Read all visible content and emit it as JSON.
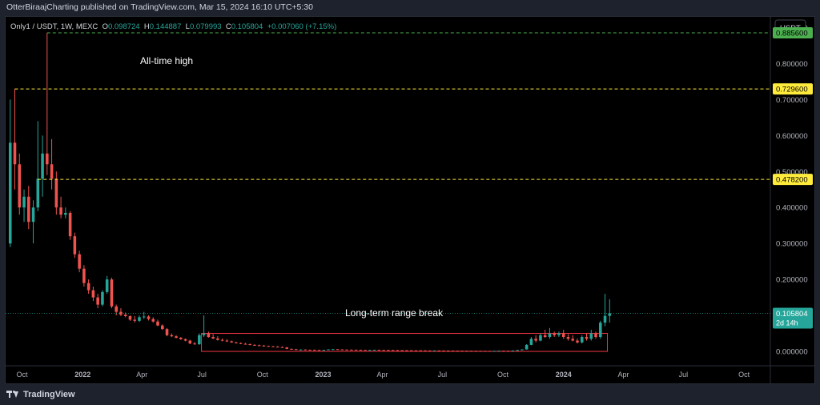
{
  "header": {
    "publish_text": "OtterBiraajCharting published on TradingView.com, Mar 15, 2024 16:10 UTC+5:30"
  },
  "legend": {
    "symbol": "Only1 / USDT, 1W, MEXC",
    "o_label": "O",
    "o_value": "0.098724",
    "h_label": "H",
    "h_value": "0.144887",
    "l_label": "L",
    "l_value": "0.079993",
    "c_label": "C",
    "c_value": "0.105804",
    "change": "+0.007060 (+7.15%)"
  },
  "price_scale": {
    "currency": "USDT",
    "ticks": [
      "0.900000",
      "0.800000",
      "0.700000",
      "0.600000",
      "0.500000",
      "0.400000",
      "0.300000",
      "0.200000",
      "0.100000",
      "0.000000"
    ]
  },
  "time_axis": {
    "labels": [
      "Oct",
      "2022",
      "Apr",
      "Jul",
      "Oct",
      "2023",
      "Apr",
      "Jul",
      "Oct",
      "2024",
      "Apr",
      "Jul",
      "Oct"
    ]
  },
  "levels": [
    {
      "value": 0.8856,
      "label": "0.885600",
      "line_color": "#4caf50",
      "tag_color": "#4caf50"
    },
    {
      "value": 0.7296,
      "label": "0.729600",
      "line_color": "#ffeb3b",
      "tag_color": "#ffeb3b"
    },
    {
      "value": 0.4782,
      "label": "0.478200",
      "line_color": "#ffeb3b",
      "tag_color": "#ffeb3b"
    }
  ],
  "current_price": {
    "value": 0.105804,
    "label": "0.105804",
    "countdown": "2d 14h",
    "color": "#26a69a"
  },
  "annotations": {
    "ath_text": "All-time high",
    "range_text": "Long-term range break",
    "range_box_color": "#f23645"
  },
  "colors": {
    "up": "#26a69a",
    "down": "#ef5350",
    "background": "#000000"
  },
  "footer": {
    "brand": "TradingView"
  },
  "chart_data": {
    "type": "candlestick",
    "title": "Only1 / USDT, 1W, MEXC",
    "ylim": [
      -0.04,
      0.93
    ],
    "x_range": [
      "2021-09-06",
      "2024-11-10"
    ],
    "candles": [
      {
        "t": "2021-09-13",
        "o": 0.3,
        "h": 0.7,
        "l": 0.29,
        "c": 0.58
      },
      {
        "t": "2021-09-20",
        "o": 0.58,
        "h": 0.73,
        "l": 0.45,
        "c": 0.52
      },
      {
        "t": "2021-09-27",
        "o": 0.52,
        "h": 0.55,
        "l": 0.38,
        "c": 0.4
      },
      {
        "t": "2021-10-04",
        "o": 0.4,
        "h": 0.45,
        "l": 0.36,
        "c": 0.43
      },
      {
        "t": "2021-10-11",
        "o": 0.43,
        "h": 0.46,
        "l": 0.34,
        "c": 0.36
      },
      {
        "t": "2021-10-18",
        "o": 0.36,
        "h": 0.42,
        "l": 0.3,
        "c": 0.4
      },
      {
        "t": "2021-10-25",
        "o": 0.4,
        "h": 0.64,
        "l": 0.39,
        "c": 0.48
      },
      {
        "t": "2021-11-01",
        "o": 0.48,
        "h": 0.6,
        "l": 0.43,
        "c": 0.55
      },
      {
        "t": "2021-11-08",
        "o": 0.55,
        "h": 0.8856,
        "l": 0.49,
        "c": 0.52
      },
      {
        "t": "2021-11-15",
        "o": 0.52,
        "h": 0.59,
        "l": 0.45,
        "c": 0.48
      },
      {
        "t": "2021-11-22",
        "o": 0.48,
        "h": 0.5,
        "l": 0.38,
        "c": 0.4
      },
      {
        "t": "2021-11-29",
        "o": 0.4,
        "h": 0.43,
        "l": 0.37,
        "c": 0.38
      },
      {
        "t": "2021-12-06",
        "o": 0.38,
        "h": 0.4,
        "l": 0.37,
        "c": 0.385
      },
      {
        "t": "2021-12-13",
        "o": 0.385,
        "h": 0.39,
        "l": 0.31,
        "c": 0.32
      },
      {
        "t": "2021-12-20",
        "o": 0.32,
        "h": 0.33,
        "l": 0.26,
        "c": 0.27
      },
      {
        "t": "2021-12-27",
        "o": 0.27,
        "h": 0.28,
        "l": 0.22,
        "c": 0.23
      },
      {
        "t": "2022-01-03",
        "o": 0.23,
        "h": 0.24,
        "l": 0.18,
        "c": 0.19
      },
      {
        "t": "2022-01-10",
        "o": 0.19,
        "h": 0.2,
        "l": 0.16,
        "c": 0.17
      },
      {
        "t": "2022-01-17",
        "o": 0.17,
        "h": 0.18,
        "l": 0.14,
        "c": 0.15
      },
      {
        "t": "2022-01-24",
        "o": 0.15,
        "h": 0.16,
        "l": 0.12,
        "c": 0.13
      },
      {
        "t": "2022-01-31",
        "o": 0.13,
        "h": 0.17,
        "l": 0.125,
        "c": 0.165
      },
      {
        "t": "2022-02-07",
        "o": 0.165,
        "h": 0.21,
        "l": 0.16,
        "c": 0.2
      },
      {
        "t": "2022-02-14",
        "o": 0.2,
        "h": 0.205,
        "l": 0.12,
        "c": 0.125
      },
      {
        "t": "2022-02-21",
        "o": 0.125,
        "h": 0.13,
        "l": 0.1,
        "c": 0.11
      },
      {
        "t": "2022-02-28",
        "o": 0.11,
        "h": 0.12,
        "l": 0.098,
        "c": 0.102
      },
      {
        "t": "2022-03-07",
        "o": 0.102,
        "h": 0.108,
        "l": 0.095,
        "c": 0.098
      },
      {
        "t": "2022-03-14",
        "o": 0.098,
        "h": 0.1,
        "l": 0.085,
        "c": 0.088
      },
      {
        "t": "2022-03-21",
        "o": 0.088,
        "h": 0.098,
        "l": 0.08,
        "c": 0.085
      },
      {
        "t": "2022-03-28",
        "o": 0.085,
        "h": 0.1,
        "l": 0.082,
        "c": 0.095
      },
      {
        "t": "2022-04-04",
        "o": 0.095,
        "h": 0.11,
        "l": 0.09,
        "c": 0.097
      },
      {
        "t": "2022-04-11",
        "o": 0.097,
        "h": 0.1,
        "l": 0.086,
        "c": 0.09
      },
      {
        "t": "2022-04-18",
        "o": 0.09,
        "h": 0.095,
        "l": 0.08,
        "c": 0.083
      },
      {
        "t": "2022-04-25",
        "o": 0.083,
        "h": 0.088,
        "l": 0.07,
        "c": 0.072
      },
      {
        "t": "2022-05-02",
        "o": 0.072,
        "h": 0.075,
        "l": 0.06,
        "c": 0.062
      },
      {
        "t": "2022-05-09",
        "o": 0.062,
        "h": 0.065,
        "l": 0.042,
        "c": 0.045
      },
      {
        "t": "2022-05-16",
        "o": 0.045,
        "h": 0.05,
        "l": 0.04,
        "c": 0.042
      },
      {
        "t": "2022-05-23",
        "o": 0.042,
        "h": 0.045,
        "l": 0.036,
        "c": 0.038
      },
      {
        "t": "2022-05-30",
        "o": 0.038,
        "h": 0.04,
        "l": 0.032,
        "c": 0.034
      },
      {
        "t": "2022-06-06",
        "o": 0.034,
        "h": 0.036,
        "l": 0.028,
        "c": 0.03
      },
      {
        "t": "2022-06-13",
        "o": 0.03,
        "h": 0.032,
        "l": 0.02,
        "c": 0.022
      },
      {
        "t": "2022-06-20",
        "o": 0.022,
        "h": 0.026,
        "l": 0.018,
        "c": 0.02
      },
      {
        "t": "2022-06-27",
        "o": 0.02,
        "h": 0.05,
        "l": 0.018,
        "c": 0.045
      },
      {
        "t": "2022-07-04",
        "o": 0.045,
        "h": 0.1,
        "l": 0.04,
        "c": 0.05
      },
      {
        "t": "2022-07-11",
        "o": 0.05,
        "h": 0.055,
        "l": 0.038,
        "c": 0.04
      },
      {
        "t": "2022-07-18",
        "o": 0.04,
        "h": 0.048,
        "l": 0.034,
        "c": 0.036
      },
      {
        "t": "2022-07-25",
        "o": 0.036,
        "h": 0.042,
        "l": 0.03,
        "c": 0.032
      },
      {
        "t": "2022-08-01",
        "o": 0.032,
        "h": 0.036,
        "l": 0.028,
        "c": 0.03
      },
      {
        "t": "2022-08-08",
        "o": 0.03,
        "h": 0.034,
        "l": 0.026,
        "c": 0.028
      },
      {
        "t": "2022-08-15",
        "o": 0.028,
        "h": 0.03,
        "l": 0.024,
        "c": 0.025
      },
      {
        "t": "2022-08-22",
        "o": 0.025,
        "h": 0.027,
        "l": 0.022,
        "c": 0.023
      },
      {
        "t": "2022-08-29",
        "o": 0.023,
        "h": 0.025,
        "l": 0.02,
        "c": 0.021
      },
      {
        "t": "2022-09-05",
        "o": 0.021,
        "h": 0.024,
        "l": 0.019,
        "c": 0.02
      },
      {
        "t": "2022-09-12",
        "o": 0.02,
        "h": 0.022,
        "l": 0.017,
        "c": 0.018
      },
      {
        "t": "2022-09-19",
        "o": 0.018,
        "h": 0.02,
        "l": 0.016,
        "c": 0.017
      },
      {
        "t": "2022-09-26",
        "o": 0.017,
        "h": 0.019,
        "l": 0.015,
        "c": 0.016
      },
      {
        "t": "2022-10-03",
        "o": 0.016,
        "h": 0.018,
        "l": 0.014,
        "c": 0.015
      },
      {
        "t": "2022-10-10",
        "o": 0.015,
        "h": 0.016,
        "l": 0.013,
        "c": 0.014
      },
      {
        "t": "2022-10-17",
        "o": 0.014,
        "h": 0.015,
        "l": 0.012,
        "c": 0.013
      },
      {
        "t": "2022-10-24",
        "o": 0.013,
        "h": 0.015,
        "l": 0.011,
        "c": 0.012
      },
      {
        "t": "2022-10-31",
        "o": 0.012,
        "h": 0.014,
        "l": 0.01,
        "c": 0.011
      },
      {
        "t": "2022-11-07",
        "o": 0.011,
        "h": 0.012,
        "l": 0.006,
        "c": 0.007
      },
      {
        "t": "2022-11-14",
        "o": 0.007,
        "h": 0.008,
        "l": 0.005,
        "c": 0.006
      },
      {
        "t": "2022-11-21",
        "o": 0.006,
        "h": 0.007,
        "l": 0.004,
        "c": 0.005
      },
      {
        "t": "2022-11-28",
        "o": 0.005,
        "h": 0.006,
        "l": 0.004,
        "c": 0.005
      },
      {
        "t": "2022-12-05",
        "o": 0.005,
        "h": 0.006,
        "l": 0.004,
        "c": 0.0045
      },
      {
        "t": "2022-12-12",
        "o": 0.0045,
        "h": 0.005,
        "l": 0.004,
        "c": 0.0042
      },
      {
        "t": "2022-12-19",
        "o": 0.0042,
        "h": 0.005,
        "l": 0.0038,
        "c": 0.004
      },
      {
        "t": "2022-12-26",
        "o": 0.004,
        "h": 0.0045,
        "l": 0.0035,
        "c": 0.0038
      },
      {
        "t": "2023-01-02",
        "o": 0.0038,
        "h": 0.0045,
        "l": 0.0035,
        "c": 0.004
      },
      {
        "t": "2023-01-09",
        "o": 0.004,
        "h": 0.006,
        "l": 0.0038,
        "c": 0.0055
      },
      {
        "t": "2023-01-16",
        "o": 0.0055,
        "h": 0.007,
        "l": 0.005,
        "c": 0.006
      },
      {
        "t": "2023-01-23",
        "o": 0.006,
        "h": 0.0065,
        "l": 0.005,
        "c": 0.0055
      },
      {
        "t": "2023-01-30",
        "o": 0.0055,
        "h": 0.006,
        "l": 0.0048,
        "c": 0.005
      },
      {
        "t": "2023-02-06",
        "o": 0.005,
        "h": 0.0055,
        "l": 0.0045,
        "c": 0.0048
      },
      {
        "t": "2023-02-13",
        "o": 0.0048,
        "h": 0.0052,
        "l": 0.0044,
        "c": 0.0046
      },
      {
        "t": "2023-02-20",
        "o": 0.0046,
        "h": 0.005,
        "l": 0.0042,
        "c": 0.0044
      },
      {
        "t": "2023-02-27",
        "o": 0.0044,
        "h": 0.0048,
        "l": 0.004,
        "c": 0.0042
      },
      {
        "t": "2023-03-06",
        "o": 0.0042,
        "h": 0.0046,
        "l": 0.0038,
        "c": 0.004
      },
      {
        "t": "2023-03-13",
        "o": 0.004,
        "h": 0.0046,
        "l": 0.0038,
        "c": 0.0043
      },
      {
        "t": "2023-03-20",
        "o": 0.0043,
        "h": 0.0048,
        "l": 0.004,
        "c": 0.0045
      },
      {
        "t": "2023-03-27",
        "o": 0.0045,
        "h": 0.0048,
        "l": 0.004,
        "c": 0.0042
      },
      {
        "t": "2023-04-03",
        "o": 0.0042,
        "h": 0.0045,
        "l": 0.0038,
        "c": 0.004
      },
      {
        "t": "2023-04-10",
        "o": 0.004,
        "h": 0.0044,
        "l": 0.0036,
        "c": 0.0038
      },
      {
        "t": "2023-04-17",
        "o": 0.0038,
        "h": 0.004,
        "l": 0.0034,
        "c": 0.0035
      },
      {
        "t": "2023-04-24",
        "o": 0.0035,
        "h": 0.0038,
        "l": 0.0032,
        "c": 0.0033
      },
      {
        "t": "2023-05-01",
        "o": 0.0033,
        "h": 0.0036,
        "l": 0.003,
        "c": 0.0032
      },
      {
        "t": "2023-05-08",
        "o": 0.0032,
        "h": 0.0035,
        "l": 0.0029,
        "c": 0.003
      },
      {
        "t": "2023-05-15",
        "o": 0.003,
        "h": 0.0033,
        "l": 0.0028,
        "c": 0.0029
      },
      {
        "t": "2023-05-22",
        "o": 0.0029,
        "h": 0.0031,
        "l": 0.0027,
        "c": 0.0028
      },
      {
        "t": "2023-05-29",
        "o": 0.0028,
        "h": 0.003,
        "l": 0.0026,
        "c": 0.0027
      },
      {
        "t": "2023-06-05",
        "o": 0.0027,
        "h": 0.0029,
        "l": 0.0024,
        "c": 0.0025
      },
      {
        "t": "2023-06-12",
        "o": 0.0025,
        "h": 0.0027,
        "l": 0.0022,
        "c": 0.0023
      },
      {
        "t": "2023-06-19",
        "o": 0.0023,
        "h": 0.0026,
        "l": 0.0022,
        "c": 0.0025
      },
      {
        "t": "2023-06-26",
        "o": 0.0025,
        "h": 0.0027,
        "l": 0.0023,
        "c": 0.0024
      },
      {
        "t": "2023-07-03",
        "o": 0.0024,
        "h": 0.0026,
        "l": 0.0022,
        "c": 0.0023
      },
      {
        "t": "2023-07-10",
        "o": 0.0023,
        "h": 0.0026,
        "l": 0.0021,
        "c": 0.0022
      },
      {
        "t": "2023-07-17",
        "o": 0.0022,
        "h": 0.0024,
        "l": 0.002,
        "c": 0.0021
      },
      {
        "t": "2023-07-24",
        "o": 0.0021,
        "h": 0.0023,
        "l": 0.0019,
        "c": 0.002
      },
      {
        "t": "2023-07-31",
        "o": 0.002,
        "h": 0.0022,
        "l": 0.0018,
        "c": 0.0019
      },
      {
        "t": "2023-08-07",
        "o": 0.0019,
        "h": 0.0021,
        "l": 0.0017,
        "c": 0.0018
      },
      {
        "t": "2023-08-14",
        "o": 0.0018,
        "h": 0.002,
        "l": 0.0016,
        "c": 0.0017
      },
      {
        "t": "2023-08-21",
        "o": 0.0017,
        "h": 0.0019,
        "l": 0.0015,
        "c": 0.0016
      },
      {
        "t": "2023-08-28",
        "o": 0.0016,
        "h": 0.0018,
        "l": 0.0014,
        "c": 0.0015
      },
      {
        "t": "2023-09-04",
        "o": 0.0015,
        "h": 0.0017,
        "l": 0.0013,
        "c": 0.0014
      },
      {
        "t": "2023-09-11",
        "o": 0.0014,
        "h": 0.0016,
        "l": 0.0012,
        "c": 0.0013
      },
      {
        "t": "2023-09-18",
        "o": 0.0013,
        "h": 0.0016,
        "l": 0.0012,
        "c": 0.0015
      },
      {
        "t": "2023-09-25",
        "o": 0.0015,
        "h": 0.002,
        "l": 0.0014,
        "c": 0.0019
      },
      {
        "t": "2023-10-02",
        "o": 0.0019,
        "h": 0.0022,
        "l": 0.0017,
        "c": 0.0018
      },
      {
        "t": "2023-10-09",
        "o": 0.0018,
        "h": 0.002,
        "l": 0.0016,
        "c": 0.0017
      },
      {
        "t": "2023-10-16",
        "o": 0.0017,
        "h": 0.0025,
        "l": 0.0016,
        "c": 0.0024
      },
      {
        "t": "2023-10-23",
        "o": 0.0024,
        "h": 0.004,
        "l": 0.0022,
        "c": 0.0038
      },
      {
        "t": "2023-10-30",
        "o": 0.0038,
        "h": 0.006,
        "l": 0.0035,
        "c": 0.0055
      },
      {
        "t": "2023-11-06",
        "o": 0.0055,
        "h": 0.02,
        "l": 0.005,
        "c": 0.018
      },
      {
        "t": "2023-11-13",
        "o": 0.018,
        "h": 0.04,
        "l": 0.017,
        "c": 0.035
      },
      {
        "t": "2023-11-20",
        "o": 0.035,
        "h": 0.045,
        "l": 0.025,
        "c": 0.03
      },
      {
        "t": "2023-11-27",
        "o": 0.03,
        "h": 0.05,
        "l": 0.028,
        "c": 0.045
      },
      {
        "t": "2023-12-04",
        "o": 0.045,
        "h": 0.06,
        "l": 0.038,
        "c": 0.04
      },
      {
        "t": "2023-12-11",
        "o": 0.04,
        "h": 0.065,
        "l": 0.035,
        "c": 0.05
      },
      {
        "t": "2023-12-18",
        "o": 0.05,
        "h": 0.055,
        "l": 0.04,
        "c": 0.045
      },
      {
        "t": "2023-12-25",
        "o": 0.045,
        "h": 0.055,
        "l": 0.04,
        "c": 0.05
      },
      {
        "t": "2024-01-01",
        "o": 0.05,
        "h": 0.06,
        "l": 0.035,
        "c": 0.04
      },
      {
        "t": "2024-01-08",
        "o": 0.04,
        "h": 0.048,
        "l": 0.03,
        "c": 0.035
      },
      {
        "t": "2024-01-15",
        "o": 0.035,
        "h": 0.045,
        "l": 0.028,
        "c": 0.03
      },
      {
        "t": "2024-01-22",
        "o": 0.03,
        "h": 0.036,
        "l": 0.022,
        "c": 0.025
      },
      {
        "t": "2024-01-29",
        "o": 0.025,
        "h": 0.045,
        "l": 0.022,
        "c": 0.04
      },
      {
        "t": "2024-02-05",
        "o": 0.04,
        "h": 0.05,
        "l": 0.03,
        "c": 0.035
      },
      {
        "t": "2024-02-12",
        "o": 0.035,
        "h": 0.06,
        "l": 0.03,
        "c": 0.05
      },
      {
        "t": "2024-02-19",
        "o": 0.05,
        "h": 0.055,
        "l": 0.035,
        "c": 0.04
      },
      {
        "t": "2024-02-26",
        "o": 0.04,
        "h": 0.085,
        "l": 0.035,
        "c": 0.08
      },
      {
        "t": "2024-03-04",
        "o": 0.08,
        "h": 0.16,
        "l": 0.07,
        "c": 0.098724
      },
      {
        "t": "2024-03-11",
        "o": 0.098724,
        "h": 0.144887,
        "l": 0.079993,
        "c": 0.105804
      }
    ],
    "horizontal_levels": [
      0.8856,
      0.7296,
      0.4782
    ],
    "range_box": {
      "t_start": "2022-07-04",
      "t_end": "2024-03-04",
      "y_low": 0.0,
      "y_high": 0.05
    }
  }
}
